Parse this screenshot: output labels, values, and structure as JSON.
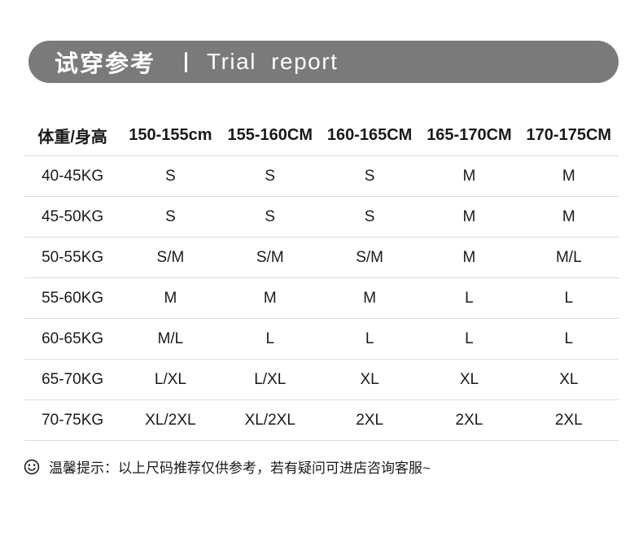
{
  "header": {
    "title_zh": "试穿参考",
    "title_en": "Trial report"
  },
  "chart_data": {
    "type": "table",
    "title": "试穿参考 | Trial report",
    "columns": [
      "体重/身高",
      "150-155cm",
      "155-160CM",
      "160-165CM",
      "165-170CM",
      "170-175CM"
    ],
    "rows": [
      {
        "label": "40-45KG",
        "values": [
          "S",
          "S",
          "S",
          "M",
          "M"
        ]
      },
      {
        "label": "45-50KG",
        "values": [
          "S",
          "S",
          "S",
          "M",
          "M"
        ]
      },
      {
        "label": "50-55KG",
        "values": [
          "S/M",
          "S/M",
          "S/M",
          "M",
          "M/L"
        ]
      },
      {
        "label": "55-60KG",
        "values": [
          "M",
          "M",
          "M",
          "L",
          "L"
        ]
      },
      {
        "label": "60-65KG",
        "values": [
          "M/L",
          "L",
          "L",
          "L",
          "L"
        ]
      },
      {
        "label": "65-70KG",
        "values": [
          "L/XL",
          "L/XL",
          "XL",
          "XL",
          "XL"
        ]
      },
      {
        "label": "70-75KG",
        "values": [
          "XL/2XL",
          "XL/2XL",
          "2XL",
          "2XL",
          "2XL"
        ]
      }
    ]
  },
  "note": {
    "icon": "smiley-icon",
    "text": "温馨提示：以上尺码推荐仅供参考，若有疑问可进店咨询客服~"
  },
  "colors": {
    "banner_bg": "#7a7a7a",
    "banner_text": "#ffffff",
    "table_text": "#1a1a1a",
    "divider": "#dddddd"
  }
}
